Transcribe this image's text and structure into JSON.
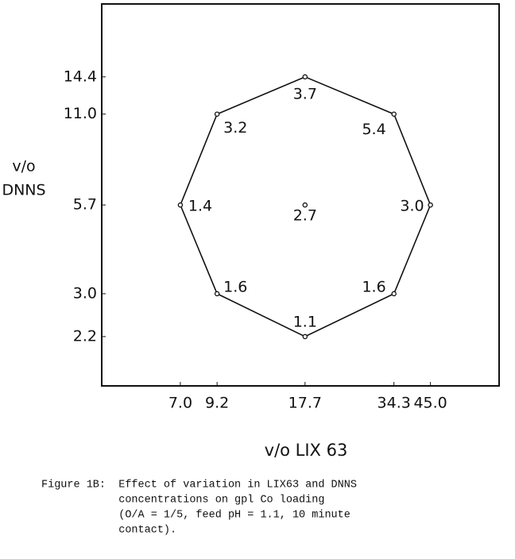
{
  "chart_data": {
    "type": "scatter",
    "xlabel": "v/o LIX 63",
    "ylabel": [
      "v/o",
      "DNNS"
    ],
    "xscale": "log",
    "yscale": "log",
    "xlim": [
      3.9,
      75
    ],
    "ylim": [
      1.54,
      24.4
    ],
    "xticks": [
      {
        "value": 7,
        "label": "7.0"
      },
      9.2,
      17.7,
      34.3,
      {
        "value": 45,
        "label": "45.0"
      }
    ],
    "yticks": [
      2.2,
      {
        "value": 3,
        "label": "3.0"
      },
      5.7,
      {
        "value": 11,
        "label": "11.0"
      },
      14.4
    ],
    "series": [
      {
        "closed": true,
        "color": "#111",
        "x": [
          17.7,
          34.3,
          45.0,
          34.3,
          17.7,
          9.2,
          7.0,
          9.2
        ],
        "y": [
          14.4,
          11.0,
          5.7,
          3.0,
          2.2,
          3.0,
          5.7,
          11.0
        ],
        "values": [
          3.7,
          5.4,
          3,
          1.6,
          1.1,
          1.6,
          1.4,
          3.2
        ],
        "value_labels": [
          "3.7",
          "5.4",
          "3.0",
          "1.6",
          "1.1",
          "1.6",
          "1.4",
          "3.2"
        ]
      },
      {
        "closed": false,
        "color": "#111",
        "x": [
          17.7
        ],
        "y": [
          5.7
        ],
        "values": [
          2.7
        ]
      }
    ],
    "caption": [
      "Figure 1B:  Effect of variation in LIX63 and DNNS",
      "            concentrations on gpl Co loading",
      "            (O/A = 1/5, feed pH = 1.1, 10 minute",
      "            contact)."
    ]
  }
}
